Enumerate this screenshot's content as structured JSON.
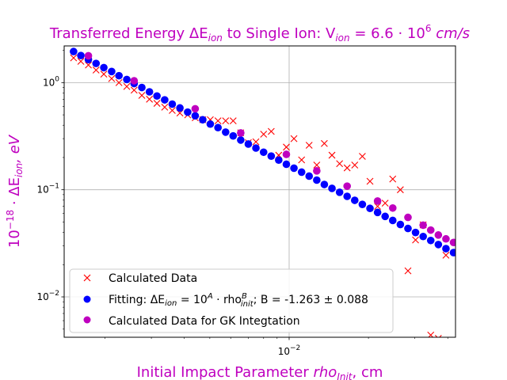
{
  "chart_data": {
    "type": "scatter",
    "title_prefix": "Transferred Energy ΔE",
    "title_sub1": "ion",
    "title_mid": " to Single Ion: V",
    "title_sub2": "ion",
    "title_suffix": " = 6.6 · 10",
    "title_sup": "6",
    "title_unit": " cm/s",
    "xlabel_prefix": "Initial Impact Parameter ",
    "xlabel_var": "rho",
    "xlabel_sub": "Init",
    "xlabel_unit": ", cm",
    "ylabel_prefix": "10",
    "ylabel_sup": "−18",
    "ylabel_mid": " · ΔE",
    "ylabel_sub": "ion",
    "ylabel_unit": ", eV",
    "xscale": "log",
    "yscale": "log",
    "xlim": [
      0.0014,
      0.0428
    ],
    "ylim": [
      0.0042,
      2.2
    ],
    "xtick_base": "10",
    "xtick_exp": "−2",
    "ytick_labels": [
      {
        "value": 1,
        "base": "10",
        "exp": "0"
      },
      {
        "value": 0.1,
        "base": "10",
        "exp": "−1"
      },
      {
        "value": 0.01,
        "base": "10",
        "exp": "−2"
      }
    ],
    "grid": true,
    "legend_position": "lower-left",
    "legend": {
      "calculated": "Calculated Data",
      "fitting_prefix": "Fitting: ΔE",
      "fitting_sub": "ion",
      "fitting_mid": " = 10",
      "fitting_sup": "A",
      "fitting_mid2": " · rho",
      "fitting_sup2": "B",
      "fitting_sub2": "init",
      "fitting_suffix": "; B = -1.263 ± 0.088",
      "gk": "Calculated Data for GK Integtation"
    },
    "colors": {
      "title": "#bf00bf",
      "calculated": "#ff0000",
      "fitting": "#0000ff",
      "gk": "#bf00bf"
    },
    "series": [
      {
        "name": "Calculated Data",
        "marker": "x",
        "x": [
          0.00152,
          0.00162,
          0.00173,
          0.00185,
          0.00198,
          0.00212,
          0.00226,
          0.00242,
          0.00258,
          0.00276,
          0.00295,
          0.00315,
          0.00337,
          0.0036,
          0.00385,
          0.00412,
          0.0044,
          0.0047,
          0.00502,
          0.00537,
          0.00574,
          0.00613,
          0.00655,
          0.007,
          0.00748,
          0.008,
          0.00855,
          0.00913,
          0.00976,
          0.01043,
          0.01115,
          0.01191,
          0.01273,
          0.0136,
          0.01454,
          0.01554,
          0.0166,
          0.01774,
          0.01896,
          0.02027,
          0.02166,
          0.02314,
          0.02473,
          0.02643,
          0.02825,
          0.03018,
          0.03226,
          0.03447,
          0.03684,
          0.03937,
          0.04207
        ],
        "y": [
          1.7,
          1.58,
          1.46,
          1.31,
          1.2,
          1.09,
          1.0,
          0.92,
          0.85,
          0.76,
          0.7,
          0.64,
          0.59,
          0.55,
          0.52,
          0.5,
          0.47,
          0.45,
          0.45,
          0.44,
          0.44,
          0.44,
          0.34,
          0.275,
          0.28,
          0.33,
          0.35,
          0.21,
          0.25,
          0.3,
          0.19,
          0.26,
          0.17,
          0.27,
          0.21,
          0.175,
          0.16,
          0.17,
          0.205,
          0.12,
          0.07,
          0.075,
          0.126,
          0.1,
          0.0175,
          0.034,
          0.047,
          0.0044,
          0.0041,
          0.0245,
          0.0037
        ]
      },
      {
        "name": "Fitting: ΔE_ion = 10^A · rho_init^B; B = -1.263 ± 0.088",
        "marker": "o",
        "x": [
          0.00152,
          0.00162,
          0.00173,
          0.00185,
          0.00198,
          0.00212,
          0.00226,
          0.00242,
          0.00258,
          0.00276,
          0.00295,
          0.00315,
          0.00337,
          0.0036,
          0.00385,
          0.00412,
          0.0044,
          0.0047,
          0.00502,
          0.00537,
          0.00574,
          0.00613,
          0.00655,
          0.007,
          0.00748,
          0.008,
          0.00855,
          0.00913,
          0.00976,
          0.01043,
          0.01115,
          0.01191,
          0.01273,
          0.0136,
          0.01454,
          0.01554,
          0.0166,
          0.01774,
          0.01896,
          0.02027,
          0.02166,
          0.02314,
          0.02473,
          0.02643,
          0.02825,
          0.03018,
          0.03226,
          0.03447,
          0.03684,
          0.03937,
          0.04207
        ],
        "y": [
          1.95,
          1.79,
          1.64,
          1.51,
          1.38,
          1.27,
          1.16,
          1.07,
          0.98,
          0.9,
          0.82,
          0.75,
          0.69,
          0.63,
          0.58,
          0.53,
          0.49,
          0.45,
          0.41,
          0.38,
          0.345,
          0.318,
          0.291,
          0.267,
          0.245,
          0.224,
          0.206,
          0.189,
          0.173,
          0.159,
          0.146,
          0.134,
          0.123,
          0.112,
          0.103,
          0.0947,
          0.0868,
          0.0797,
          0.073,
          0.067,
          0.0614,
          0.0564,
          0.0517,
          0.0474,
          0.0435,
          0.0399,
          0.0366,
          0.0336,
          0.0308,
          0.0282,
          0.0259
        ]
      },
      {
        "name": "Calculated Data for GK Integtation",
        "marker": "o",
        "x": [
          0.00173,
          0.00258,
          0.0044,
          0.00655,
          0.00976,
          0.01273,
          0.0166,
          0.02166,
          0.02473,
          0.02825,
          0.03226,
          0.03447,
          0.03684,
          0.03937,
          0.04207
        ],
        "y": [
          1.78,
          1.04,
          0.57,
          0.339,
          0.214,
          0.15,
          0.108,
          0.0785,
          0.0675,
          0.0552,
          0.0467,
          0.042,
          0.0378,
          0.0348,
          0.0322
        ]
      }
    ]
  }
}
